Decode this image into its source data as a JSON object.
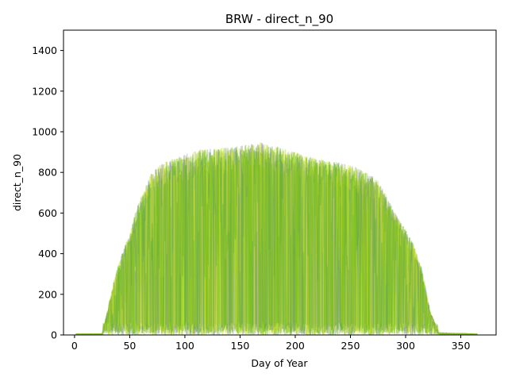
{
  "chart_data": {
    "type": "line",
    "title": "BRW - direct_n_90",
    "xlabel": "Day of Year",
    "ylabel": "direct_n_90",
    "xlim": [
      -10,
      382
    ],
    "ylim": [
      0,
      1500
    ],
    "xticks": [
      0,
      50,
      100,
      150,
      200,
      250,
      300,
      350
    ],
    "yticks": [
      0,
      200,
      400,
      600,
      800,
      1000,
      1200,
      1400
    ],
    "grid": false,
    "legend": "none",
    "x_range": [
      1,
      365
    ],
    "series_colors": [
      "#7f86c8",
      "#e8ef3a",
      "#8fce10",
      "#4aa81a",
      "#b9dc22"
    ],
    "series_alpha": 0.35,
    "envelope": {
      "description_points_x": [
        1,
        25,
        30,
        35,
        40,
        45,
        50,
        55,
        60,
        70,
        80,
        100,
        120,
        150,
        170,
        190,
        210,
        230,
        250,
        265,
        275,
        285,
        295,
        305,
        315,
        322,
        330,
        365
      ],
      "max_y": [
        5,
        5,
        120,
        250,
        350,
        430,
        500,
        600,
        680,
        800,
        850,
        890,
        920,
        930,
        950,
        920,
        880,
        860,
        840,
        800,
        760,
        660,
        560,
        480,
        320,
        120,
        10,
        5
      ]
    }
  }
}
